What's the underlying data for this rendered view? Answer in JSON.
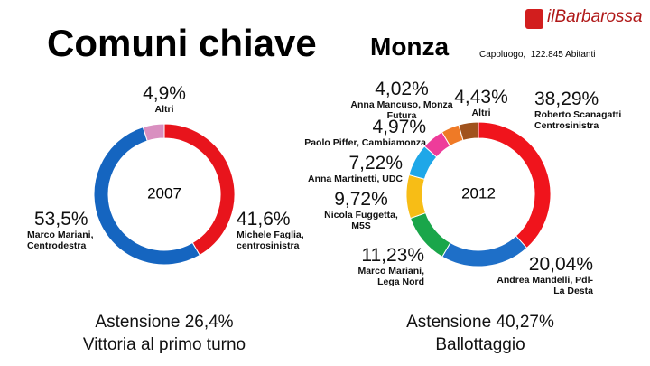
{
  "header": {
    "title": "Comuni chiave",
    "city": "Monza",
    "info": "Capoluogo,  122.845 Abitanti",
    "logo": "ilBarbarossa"
  },
  "chart_data": [
    {
      "type": "pie",
      "center_label": "2007",
      "labels": [
        "Michele Faglia, centrosinistra",
        "Marco Mariani, Centrodestra",
        "Altri"
      ],
      "values": [
        41.6,
        53.5,
        4.9
      ],
      "value_labels": [
        "41,6%",
        "53,5%",
        "4,9%"
      ],
      "colors": [
        "#e8141c",
        "#1565c0",
        "#d98fc0"
      ],
      "caption": [
        "Astensione 26,4%",
        "Vittoria al primo turno"
      ]
    },
    {
      "type": "pie",
      "center_label": "2012",
      "labels": [
        "Roberto Scanagatti Centrosinistra",
        "Andrea Mandelli, Pdl- La Desta",
        "Marco Mariani, Lega Nord",
        "Nicola Fuggetta, M5S",
        "Anna Martinetti, UDC",
        "Paolo Piffer, Cambiamonza",
        "Anna Mancuso, Monza Futura",
        "Altri"
      ],
      "values": [
        38.29,
        20.04,
        11.23,
        9.72,
        7.22,
        4.97,
        4.02,
        4.43
      ],
      "value_labels": [
        "38,29%",
        "20,04%",
        "11,23%",
        "9,72%",
        "7,22%",
        "4,97%",
        "4,02%",
        "4,43%"
      ],
      "colors": [
        "#f0141c",
        "#1e6fc8",
        "#1aa64a",
        "#f7bd16",
        "#1ea7e8",
        "#ee3c9a",
        "#ef7a26",
        "#a0521d"
      ],
      "caption": [
        "Astensione 40,27%",
        "Ballottaggio"
      ]
    }
  ]
}
